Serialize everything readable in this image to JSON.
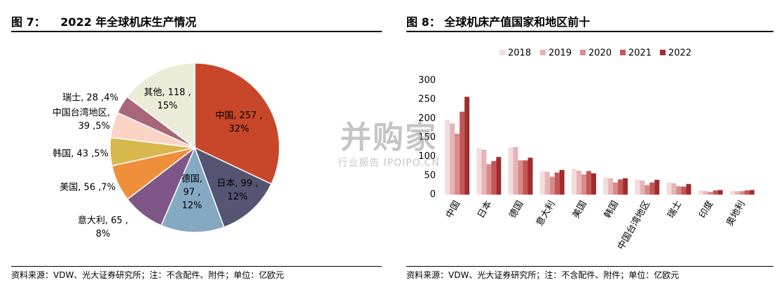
{
  "left": {
    "fig_no": "图 7：",
    "title": "2022 年全球机床生产情况",
    "source": "资料来源：VDW、光大证券研究所；注：不含配件、附件；单位：亿欧元"
  },
  "right": {
    "fig_no": "图 8：",
    "title": "全球机床产值国家和地区前十",
    "source": "资料来源：VDW、光大证券研究所；注：不含配件、附件；单位：亿欧元"
  },
  "watermark": {
    "main": "并购家",
    "sub": "行业报告 IPOIPO.CN"
  },
  "colors": {
    "pie": [
      "#c8472a",
      "#555473",
      "#86a9c3",
      "#7e5687",
      "#ef8f3b",
      "#d8b84e",
      "#fbd3c4",
      "#a8667a",
      "#eaecd8"
    ],
    "bars": [
      "#f3dcdc",
      "#e6b4b4",
      "#d88a8a",
      "#c55656",
      "#a02c2c"
    ]
  },
  "chart_data": [
    {
      "type": "pie",
      "slices": [
        {
          "name": "中国",
          "value": 257,
          "pct": "32%"
        },
        {
          "name": "日本",
          "value": 99,
          "pct": "12%"
        },
        {
          "name": "德国",
          "value": 97,
          "pct": "12%"
        },
        {
          "name": "意大利",
          "value": 65,
          "pct": "8%"
        },
        {
          "name": "美国",
          "value": 56,
          "pct": "7%"
        },
        {
          "name": "韩国",
          "value": 43,
          "pct": "5%"
        },
        {
          "name": "中国台湾地区",
          "value": 39,
          "pct": "5%"
        },
        {
          "name": "瑞士",
          "value": 28,
          "pct": "4%"
        },
        {
          "name": "其他",
          "value": 118,
          "pct": "15%"
        }
      ],
      "labels": [
        [
          "中国, 257 ,",
          "32%"
        ],
        [
          "日本, 99 ,",
          "12%"
        ],
        [
          "德国,",
          "97 ,",
          "12%"
        ],
        [
          "意大利, 65 ,",
          "8%"
        ],
        [
          "美国, 56 ,7%"
        ],
        [
          "韩国, 43 ,5%"
        ],
        [
          "中国台湾地区,",
          "39 ,5%"
        ],
        [
          "瑞士, 28 ,4%"
        ],
        [
          "其他, 118 ,",
          "15%"
        ]
      ]
    },
    {
      "type": "bar",
      "categories": [
        "中国",
        "日本",
        "德国",
        "意大利",
        "美国",
        "韩国",
        "中国台湾地区",
        "瑞士",
        "印度",
        "奥地利"
      ],
      "series": [
        {
          "name": "2018",
          "values": [
            197,
            122,
            125,
            62,
            68,
            45,
            40,
            32,
            11,
            9
          ]
        },
        {
          "name": "2019",
          "values": [
            187,
            118,
            125,
            60,
            63,
            43,
            37,
            30,
            9,
            9
          ]
        },
        {
          "name": "2020",
          "values": [
            160,
            80,
            90,
            47,
            53,
            32,
            25,
            22,
            7,
            9
          ]
        },
        {
          "name": "2021",
          "values": [
            218,
            88,
            90,
            58,
            62,
            40,
            32,
            21,
            11,
            11
          ]
        },
        {
          "name": "2022",
          "values": [
            257,
            99,
            97,
            65,
            56,
            43,
            39,
            28,
            12,
            12
          ]
        }
      ],
      "ylim": [
        0,
        300
      ],
      "yticks": [
        0,
        50,
        100,
        150,
        200,
        250,
        300
      ],
      "legend": "top"
    }
  ]
}
